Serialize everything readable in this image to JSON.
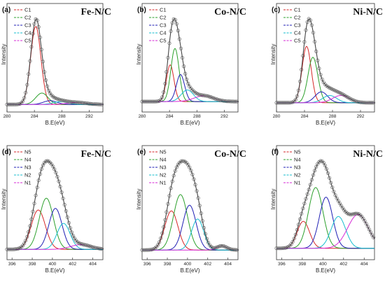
{
  "chart_data": [
    {
      "type": "line",
      "panel_label": "(a)",
      "title": "Fe-N/C",
      "xlabel": "B.E(eV)",
      "ylabel": "Intensity",
      "xlim": [
        280,
        294
      ],
      "xticks": [
        280,
        284,
        288,
        292
      ],
      "legend": [
        "C1",
        "C2",
        "C3",
        "C4",
        "C5"
      ],
      "legend_colors": [
        "#d62728",
        "#2ca02c",
        "#1f1fb4",
        "#17becf",
        "#d62ad6"
      ],
      "peaks": [
        {
          "name": "C1",
          "center": 284.2,
          "height": 0.82,
          "width": 0.75
        },
        {
          "name": "C2",
          "center": 285.1,
          "height": 0.12,
          "width": 0.9
        },
        {
          "name": "C3",
          "center": 286.3,
          "height": 0.04,
          "width": 1.0
        },
        {
          "name": "C4",
          "center": 287.8,
          "height": 0.03,
          "width": 1.1
        },
        {
          "name": "C5",
          "center": 290.2,
          "height": 0.02,
          "width": 1.4
        }
      ],
      "baseline": 0.02
    },
    {
      "type": "line",
      "panel_label": "(b)",
      "title": "Co-N/C",
      "xlabel": "B.E(eV)",
      "ylabel": "Intensity",
      "xlim": [
        280,
        294
      ],
      "xticks": [
        280,
        284,
        288,
        292
      ],
      "legend": [
        "C1",
        "C2",
        "C3",
        "C4",
        "C5"
      ],
      "legend_colors": [
        "#d62728",
        "#2ca02c",
        "#1f1fb4",
        "#17becf",
        "#d62ad6"
      ],
      "peaks": [
        {
          "name": "C1",
          "center": 284.1,
          "height": 0.38,
          "width": 0.55
        },
        {
          "name": "C2",
          "center": 284.8,
          "height": 0.55,
          "width": 0.6
        },
        {
          "name": "C3",
          "center": 285.6,
          "height": 0.28,
          "width": 0.6
        },
        {
          "name": "C4",
          "center": 286.6,
          "height": 0.12,
          "width": 0.9
        },
        {
          "name": "C5",
          "center": 289.0,
          "height": 0.06,
          "width": 1.4
        }
      ],
      "baseline": 0.05
    },
    {
      "type": "line",
      "panel_label": "(c)",
      "title": "Ni-N/C",
      "xlabel": "B.E(eV)",
      "ylabel": "Intensity",
      "xlim": [
        280,
        294
      ],
      "xticks": [
        280,
        284,
        288,
        292
      ],
      "legend": [
        "C1",
        "C2",
        "C3",
        "C4",
        "C5"
      ],
      "legend_colors": [
        "#d62728",
        "#2ca02c",
        "#1f1fb4",
        "#17becf",
        "#d62ad6"
      ],
      "peaks": [
        {
          "name": "C1",
          "center": 284.3,
          "height": 0.62,
          "width": 0.65
        },
        {
          "name": "C2",
          "center": 285.2,
          "height": 0.5,
          "width": 0.7
        },
        {
          "name": "C3",
          "center": 286.4,
          "height": 0.12,
          "width": 0.9
        },
        {
          "name": "C4",
          "center": 287.6,
          "height": 0.08,
          "width": 1.0
        },
        {
          "name": "C5",
          "center": 289.2,
          "height": 0.08,
          "width": 1.2
        }
      ],
      "baseline": 0.04
    },
    {
      "type": "line",
      "panel_label": "(d)",
      "title": "Fe-N/C",
      "xlabel": "B.E(eV)",
      "ylabel": "Intensity",
      "xlim": [
        395.5,
        405
      ],
      "xticks": [
        396,
        398,
        400,
        402,
        404
      ],
      "legend": [
        "N5",
        "N4",
        "N3",
        "N2",
        "N1"
      ],
      "legend_colors": [
        "#d62728",
        "#2ca02c",
        "#1f1fb4",
        "#17becf",
        "#d62ad6"
      ],
      "peaks": [
        {
          "name": "N5",
          "center": 398.6,
          "height": 0.5,
          "width": 0.7
        },
        {
          "name": "N4",
          "center": 399.4,
          "height": 0.65,
          "width": 0.7
        },
        {
          "name": "N3",
          "center": 400.3,
          "height": 0.52,
          "width": 0.65
        },
        {
          "name": "N2",
          "center": 401.1,
          "height": 0.33,
          "width": 0.65
        },
        {
          "name": "N1",
          "center": 402.8,
          "height": 0.06,
          "width": 1.0
        }
      ],
      "baseline": 0.06
    },
    {
      "type": "line",
      "panel_label": "(e)",
      "title": "Co-N/C",
      "xlabel": "B.E(eV)",
      "ylabel": "Intensity",
      "xlim": [
        395.5,
        405
      ],
      "xticks": [
        396,
        398,
        400,
        402,
        404
      ],
      "legend": [
        "N5",
        "N4",
        "N3",
        "N2",
        "N1"
      ],
      "legend_colors": [
        "#d62728",
        "#2ca02c",
        "#1f1fb4",
        "#17becf",
        "#d62ad6"
      ],
      "peaks": [
        {
          "name": "N5",
          "center": 398.4,
          "height": 0.48,
          "width": 0.65
        },
        {
          "name": "N4",
          "center": 399.3,
          "height": 0.68,
          "width": 0.7
        },
        {
          "name": "N3",
          "center": 400.2,
          "height": 0.55,
          "width": 0.65
        },
        {
          "name": "N2",
          "center": 401.0,
          "height": 0.38,
          "width": 0.6
        },
        {
          "name": "N1",
          "center": 403.4,
          "height": 0.05,
          "width": 0.5
        }
      ],
      "baseline": 0.05
    },
    {
      "type": "line",
      "panel_label": "(f)",
      "title": "Ni-N/C",
      "xlabel": "B.E(eV)",
      "ylabel": "Intensity",
      "xlim": [
        395.5,
        405
      ],
      "xticks": [
        396,
        398,
        400,
        402,
        404
      ],
      "legend": [
        "N5",
        "N4",
        "N3",
        "N2",
        "N1"
      ],
      "legend_colors": [
        "#d62728",
        "#2ca02c",
        "#1f1fb4",
        "#17becf",
        "#d62ad6"
      ],
      "peaks": [
        {
          "name": "N5",
          "center": 398.1,
          "height": 0.28,
          "width": 0.6
        },
        {
          "name": "N4",
          "center": 399.3,
          "height": 0.63,
          "width": 0.7
        },
        {
          "name": "N3",
          "center": 400.3,
          "height": 0.53,
          "width": 0.65
        },
        {
          "name": "N2",
          "center": 401.5,
          "height": 0.33,
          "width": 0.7
        },
        {
          "name": "N1",
          "center": 403.4,
          "height": 0.35,
          "width": 1.0
        }
      ],
      "baseline": 0.06
    }
  ]
}
